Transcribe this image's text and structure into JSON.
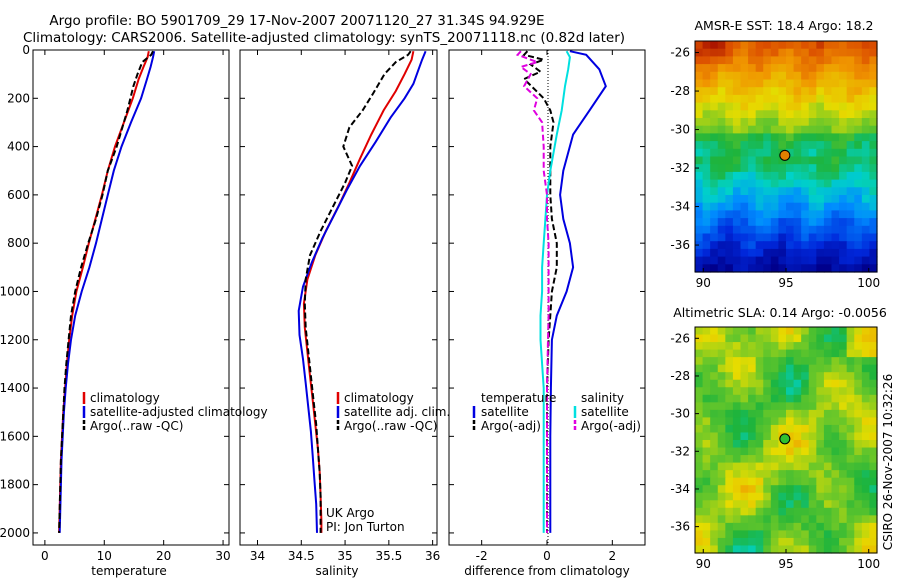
{
  "header": {
    "line1": "Argo profile: BO 5901709_29 17-Nov-2007 20071120_27 31.34S 94.929E",
    "line2": "Climatology: CARS2006. Satellite-adjusted climatology: synTS_20071118.nc (0.82d later)"
  },
  "side_label": "CSIRO 26-Nov-2007 10:32:26",
  "colors": {
    "clim": "#e00000",
    "sat": "#0000e0",
    "argo": "#000000",
    "sat_s": "#00e0e0",
    "argo_s": "#e000e0"
  },
  "chart_data": [
    {
      "type": "line",
      "id": "temperature",
      "xlabel": "temperature",
      "xlim": [
        -2,
        31
      ],
      "ylim": [
        2050,
        0
      ],
      "xticks": [
        0,
        10,
        20,
        30
      ],
      "yticks": [
        0,
        200,
        400,
        600,
        800,
        1000,
        1200,
        1400,
        1600,
        1800,
        2000
      ],
      "legend": [
        "climatology",
        "satellite-adjusted climatology",
        "Argo(..raw -QC)"
      ],
      "series": [
        {
          "name": "climatology",
          "style": "clim",
          "points": [
            [
              17.5,
              5
            ],
            [
              17.3,
              30
            ],
            [
              16.6,
              70
            ],
            [
              15.8,
              120
            ],
            [
              14.8,
              200
            ],
            [
              13.3,
              300
            ],
            [
              11.8,
              400
            ],
            [
              10.6,
              500
            ],
            [
              9.6,
              600
            ],
            [
              8.5,
              700
            ],
            [
              7.4,
              800
            ],
            [
              6.4,
              900
            ],
            [
              5.3,
              1000
            ],
            [
              4.6,
              1100
            ],
            [
              4.1,
              1200
            ],
            [
              3.7,
              1300
            ],
            [
              3.4,
              1400
            ],
            [
              3.1,
              1500
            ],
            [
              2.9,
              1600
            ],
            [
              2.7,
              1700
            ],
            [
              2.6,
              1800
            ],
            [
              2.5,
              1900
            ],
            [
              2.4,
              2000
            ]
          ]
        },
        {
          "name": "satellite-adjusted climatology",
          "style": "sat",
          "points": [
            [
              18.4,
              5
            ],
            [
              18.2,
              30
            ],
            [
              17.8,
              70
            ],
            [
              17.2,
              120
            ],
            [
              16.2,
              200
            ],
            [
              14.5,
              300
            ],
            [
              12.9,
              400
            ],
            [
              11.6,
              500
            ],
            [
              10.6,
              600
            ],
            [
              9.6,
              700
            ],
            [
              8.6,
              800
            ],
            [
              7.5,
              900
            ],
            [
              6.2,
              1000
            ],
            [
              5.1,
              1100
            ],
            [
              4.4,
              1200
            ],
            [
              3.9,
              1300
            ],
            [
              3.5,
              1400
            ],
            [
              3.2,
              1500
            ],
            [
              3.0,
              1600
            ],
            [
              2.8,
              1700
            ],
            [
              2.7,
              1800
            ],
            [
              2.6,
              1900
            ],
            [
              2.5,
              2000
            ]
          ]
        },
        {
          "name": "Argo(..raw -QC)",
          "style": "argo",
          "points": [
            [
              18.2,
              5
            ],
            [
              17.9,
              20
            ],
            [
              16.4,
              50
            ],
            [
              15.6,
              100
            ],
            [
              14.9,
              150
            ],
            [
              13.9,
              250
            ],
            [
              12.1,
              400
            ],
            [
              10.6,
              500
            ],
            [
              9.7,
              600
            ],
            [
              8.6,
              700
            ],
            [
              7.3,
              800
            ],
            [
              6.1,
              900
            ],
            [
              5.1,
              1000
            ],
            [
              4.4,
              1100
            ],
            [
              4.0,
              1200
            ],
            [
              3.6,
              1300
            ],
            [
              3.3,
              1400
            ],
            [
              3.1,
              1500
            ],
            [
              2.9,
              1600
            ],
            [
              2.7,
              1700
            ],
            [
              2.6,
              1800
            ],
            [
              2.5,
              1900
            ],
            [
              2.4,
              2000
            ]
          ]
        }
      ]
    },
    {
      "type": "line",
      "id": "salinity",
      "xlabel": "salinity",
      "xlim": [
        33.8,
        36.05
      ],
      "ylim": [
        2050,
        0
      ],
      "xticks": [
        34,
        34.5,
        35,
        35.5,
        36
      ],
      "legend": [
        "climatology",
        "satellite adj. clim.",
        "Argo(..raw -QC)"
      ],
      "note": [
        "UK Argo",
        "PI: Jon Turton"
      ],
      "series": [
        {
          "name": "climatology",
          "style": "clim",
          "points": [
            [
              35.78,
              5
            ],
            [
              35.76,
              40
            ],
            [
              35.68,
              100
            ],
            [
              35.58,
              170
            ],
            [
              35.44,
              250
            ],
            [
              35.3,
              350
            ],
            [
              35.17,
              450
            ],
            [
              35.05,
              550
            ],
            [
              34.92,
              650
            ],
            [
              34.78,
              750
            ],
            [
              34.66,
              850
            ],
            [
              34.57,
              950
            ],
            [
              34.53,
              1050
            ],
            [
              34.54,
              1150
            ],
            [
              34.57,
              1250
            ],
            [
              34.6,
              1350
            ],
            [
              34.63,
              1450
            ],
            [
              34.66,
              1550
            ],
            [
              34.69,
              1650
            ],
            [
              34.71,
              1750
            ],
            [
              34.72,
              1850
            ],
            [
              34.73,
              1950
            ],
            [
              34.73,
              2000
            ]
          ]
        },
        {
          "name": "satellite adj. clim.",
          "style": "sat",
          "points": [
            [
              35.92,
              5
            ],
            [
              35.88,
              40
            ],
            [
              35.84,
              80
            ],
            [
              35.78,
              140
            ],
            [
              35.68,
              200
            ],
            [
              35.52,
              280
            ],
            [
              35.35,
              380
            ],
            [
              35.17,
              480
            ],
            [
              35.02,
              580
            ],
            [
              34.88,
              680
            ],
            [
              34.74,
              780
            ],
            [
              34.62,
              880
            ],
            [
              34.52,
              980
            ],
            [
              34.47,
              1080
            ],
            [
              34.48,
              1180
            ],
            [
              34.52,
              1280
            ],
            [
              34.55,
              1380
            ],
            [
              34.58,
              1480
            ],
            [
              34.61,
              1580
            ],
            [
              34.63,
              1680
            ],
            [
              34.65,
              1780
            ],
            [
              34.67,
              1880
            ],
            [
              34.68,
              2000
            ]
          ]
        },
        {
          "name": "Argo(..raw -QC)",
          "style": "argo",
          "points": [
            [
              35.75,
              5
            ],
            [
              35.72,
              20
            ],
            [
              35.58,
              50
            ],
            [
              35.45,
              100
            ],
            [
              35.32,
              180
            ],
            [
              35.2,
              250
            ],
            [
              35.05,
              320
            ],
            [
              34.98,
              400
            ],
            [
              35.08,
              480
            ],
            [
              35.0,
              550
            ],
            [
              34.86,
              650
            ],
            [
              34.72,
              750
            ],
            [
              34.6,
              850
            ],
            [
              34.55,
              950
            ],
            [
              34.54,
              1050
            ],
            [
              34.55,
              1150
            ],
            [
              34.58,
              1250
            ],
            [
              34.61,
              1350
            ],
            [
              34.64,
              1450
            ],
            [
              34.67,
              1550
            ],
            [
              34.69,
              1650
            ],
            [
              34.71,
              1750
            ],
            [
              34.72,
              1850
            ],
            [
              34.72,
              1950
            ],
            [
              34.72,
              2000
            ]
          ]
        }
      ]
    },
    {
      "type": "line",
      "id": "difference",
      "xlabel": "difference from climatology",
      "xlim": [
        -3,
        3
      ],
      "ylim": [
        2050,
        0
      ],
      "xticks": [
        -2,
        0,
        2
      ],
      "legend_headers": [
        "temperature",
        "salinity"
      ],
      "legend_temp": [
        "satellite",
        "Argo(-adj)"
      ],
      "legend_sal": [
        "satellite",
        "Argo(-adj)"
      ],
      "series": [
        {
          "name": "temperature satellite",
          "style": "sat",
          "points": [
            [
              0.7,
              5
            ],
            [
              1.2,
              20
            ],
            [
              1.6,
              80
            ],
            [
              1.8,
              150
            ],
            [
              1.3,
              250
            ],
            [
              0.8,
              350
            ],
            [
              0.5,
              500
            ],
            [
              0.4,
              600
            ],
            [
              0.5,
              700
            ],
            [
              0.7,
              800
            ],
            [
              0.8,
              900
            ],
            [
              0.6,
              1000
            ],
            [
              0.3,
              1100
            ],
            [
              0.15,
              1200
            ],
            [
              0.12,
              1400
            ],
            [
              0.1,
              1600
            ],
            [
              0.1,
              1800
            ],
            [
              0.1,
              2000
            ]
          ]
        },
        {
          "name": "temperature Argo(-adj)",
          "style": "argo",
          "points": [
            [
              -0.6,
              5
            ],
            [
              -0.7,
              20
            ],
            [
              -0.1,
              40
            ],
            [
              -0.5,
              60
            ],
            [
              -0.2,
              90
            ],
            [
              -0.7,
              120
            ],
            [
              -0.4,
              160
            ],
            [
              -0.1,
              200
            ],
            [
              0.1,
              250
            ],
            [
              0.2,
              300
            ],
            [
              0.1,
              400
            ],
            [
              0.1,
              500
            ],
            [
              0.1,
              600
            ],
            [
              0.15,
              700
            ],
            [
              0.3,
              800
            ],
            [
              0.3,
              900
            ],
            [
              0.15,
              1000
            ],
            [
              0.1,
              1100
            ],
            [
              0.05,
              1200
            ],
            [
              0.0,
              1400
            ],
            [
              0.0,
              1600
            ],
            [
              0.0,
              1800
            ],
            [
              0.0,
              2000
            ]
          ]
        },
        {
          "name": "salinity satellite",
          "style": "sat_s",
          "points": [
            [
              0.6,
              5
            ],
            [
              0.7,
              30
            ],
            [
              0.65,
              80
            ],
            [
              0.55,
              150
            ],
            [
              0.45,
              250
            ],
            [
              0.3,
              350
            ],
            [
              0.1,
              500
            ],
            [
              0.0,
              600
            ],
            [
              -0.05,
              700
            ],
            [
              -0.1,
              800
            ],
            [
              -0.15,
              900
            ],
            [
              -0.15,
              1000
            ],
            [
              -0.2,
              1100
            ],
            [
              -0.2,
              1200
            ],
            [
              -0.15,
              1300
            ],
            [
              -0.1,
              1400
            ],
            [
              -0.1,
              1600
            ],
            [
              -0.1,
              1800
            ],
            [
              -0.1,
              2000
            ]
          ]
        },
        {
          "name": "salinity Argo(-adj)",
          "style": "argo_s",
          "points": [
            [
              -0.8,
              5
            ],
            [
              -0.9,
              20
            ],
            [
              -0.3,
              50
            ],
            [
              -0.8,
              70
            ],
            [
              -0.5,
              100
            ],
            [
              -0.7,
              150
            ],
            [
              -0.3,
              200
            ],
            [
              -0.4,
              250
            ],
            [
              -0.15,
              300
            ],
            [
              -0.1,
              400
            ],
            [
              -0.1,
              500
            ],
            [
              0.0,
              600
            ],
            [
              0.0,
              700
            ],
            [
              0.05,
              800
            ],
            [
              0.05,
              900
            ],
            [
              0.05,
              1000
            ],
            [
              0.05,
              1100
            ],
            [
              0.03,
              1200
            ],
            [
              0.0,
              1400
            ],
            [
              0.0,
              1600
            ],
            [
              0.0,
              1800
            ],
            [
              0.0,
              2000
            ]
          ]
        }
      ]
    },
    {
      "type": "heatmap",
      "id": "sst_map",
      "title": "AMSR-E SST: 18.4 Argo: 18.2",
      "xlim": [
        89.5,
        100.5
      ],
      "ylim": [
        -37.4,
        -25.4
      ],
      "xticks": [
        90,
        95,
        100
      ],
      "yticks": [
        -26,
        -28,
        -30,
        -32,
        -34,
        -36
      ],
      "marker": [
        94.93,
        -31.34
      ],
      "marker_color": "#e08000"
    },
    {
      "type": "heatmap",
      "id": "sla_map",
      "title": "Altimetric SLA: 0.14 Argo: -0.0056",
      "xlim": [
        89.5,
        100.5
      ],
      "ylim": [
        -37.4,
        -25.4
      ],
      "xticks": [
        90,
        95,
        100
      ],
      "yticks": [
        -26,
        -28,
        -30,
        -32,
        -34,
        -36
      ],
      "marker": [
        94.93,
        -31.34
      ],
      "marker_color": "#30c030"
    }
  ]
}
